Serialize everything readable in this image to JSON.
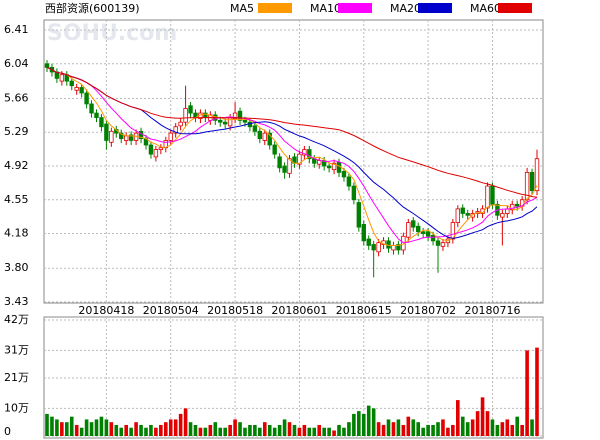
{
  "chart_data": {
    "type": "candlestick",
    "title": "西部资源(600139)",
    "watermark": "SOHU.com",
    "up_color": "#e00000",
    "down_color": "#008000",
    "grid": true,
    "ma": [
      {
        "name": "MA5",
        "color": "#ff9900"
      },
      {
        "name": "MA10",
        "color": "#ff00ff"
      },
      {
        "name": "MA20",
        "color": "#0000cc"
      },
      {
        "name": "MA60",
        "color": "#e00000"
      }
    ],
    "categories": [
      null,
      null,
      null,
      null,
      null,
      null,
      null,
      null,
      null,
      null,
      null,
      null,
      "20180418",
      null,
      null,
      null,
      null,
      null,
      null,
      null,
      null,
      null,
      null,
      null,
      null,
      "20180504",
      null,
      null,
      null,
      null,
      null,
      null,
      null,
      null,
      null,
      null,
      null,
      null,
      "20180518",
      null,
      null,
      null,
      null,
      null,
      null,
      null,
      null,
      null,
      null,
      null,
      null,
      "20180601",
      null,
      null,
      null,
      null,
      null,
      null,
      null,
      null,
      null,
      null,
      null,
      null,
      "20180615",
      null,
      null,
      null,
      null,
      null,
      null,
      null,
      null,
      null,
      null,
      null,
      null,
      "20180702",
      null,
      null,
      null,
      null,
      null,
      null,
      null,
      null,
      null,
      null,
      null,
      null,
      "20180716",
      null,
      null,
      null,
      null,
      null,
      null,
      null,
      null,
      null
    ],
    "open": [
      6.04,
      6.0,
      5.95,
      5.85,
      5.92,
      5.85,
      5.75,
      5.78,
      5.72,
      5.6,
      5.5,
      5.45,
      5.38,
      5.18,
      5.32,
      5.28,
      5.2,
      5.26,
      5.2,
      5.3,
      5.22,
      5.15,
      5.02,
      5.1,
      5.12,
      5.2,
      5.28,
      5.36,
      5.4,
      5.58,
      5.5,
      5.44,
      5.5,
      5.42,
      5.48,
      5.42,
      5.4,
      5.36,
      5.44,
      5.52,
      5.42,
      5.4,
      5.36,
      5.3,
      5.2,
      5.28,
      5.15,
      5.02,
      4.92,
      4.84,
      5.02,
      4.94,
      5.04,
      5.1,
      5.0,
      4.94,
      4.98,
      4.92,
      4.88,
      4.96,
      4.86,
      4.8,
      4.7,
      4.52,
      4.28,
      4.12,
      4.06,
      3.98,
      4.06,
      4.1,
      4.0,
      4.06,
      4.0,
      4.14,
      4.32,
      4.26,
      4.2,
      4.2,
      4.16,
      4.1,
      4.04,
      4.08,
      4.12,
      4.3,
      4.46,
      4.4,
      4.36,
      4.4,
      4.4,
      4.46,
      4.7,
      4.5,
      4.36,
      4.4,
      4.44,
      4.5,
      4.48,
      4.55,
      4.85,
      4.65
    ],
    "high": [
      6.08,
      6.04,
      5.99,
      5.96,
      5.96,
      5.89,
      5.82,
      5.82,
      5.76,
      5.64,
      5.54,
      5.49,
      5.42,
      5.34,
      5.36,
      5.32,
      5.29,
      5.3,
      5.32,
      5.34,
      5.26,
      5.19,
      5.14,
      5.16,
      5.24,
      5.32,
      5.39,
      5.44,
      5.8,
      5.62,
      5.54,
      5.54,
      5.54,
      5.52,
      5.52,
      5.46,
      5.44,
      5.49,
      5.62,
      5.56,
      5.46,
      5.44,
      5.4,
      5.34,
      5.32,
      5.32,
      5.19,
      5.06,
      4.96,
      5.04,
      5.06,
      5.09,
      5.14,
      5.14,
      5.04,
      5.02,
      5.02,
      4.96,
      4.99,
      5.0,
      4.9,
      4.84,
      4.74,
      4.56,
      4.32,
      4.16,
      4.1,
      4.12,
      4.14,
      4.14,
      4.09,
      4.1,
      4.19,
      4.34,
      4.36,
      4.3,
      4.24,
      4.24,
      4.2,
      4.14,
      4.12,
      4.16,
      4.34,
      4.49,
      4.5,
      4.44,
      4.44,
      4.46,
      4.49,
      4.74,
      4.74,
      4.54,
      4.44,
      4.49,
      4.54,
      4.54,
      4.59,
      4.9,
      4.89,
      5.1
    ],
    "low": [
      5.95,
      5.9,
      5.83,
      5.8,
      5.8,
      5.75,
      5.7,
      5.67,
      5.55,
      5.45,
      5.4,
      5.3,
      5.1,
      5.13,
      5.23,
      5.17,
      5.15,
      5.15,
      5.15,
      5.17,
      5.1,
      5.0,
      4.97,
      5.05,
      5.07,
      5.15,
      5.23,
      5.31,
      5.35,
      5.45,
      5.4,
      5.39,
      5.4,
      5.37,
      5.37,
      5.35,
      5.33,
      5.31,
      5.39,
      5.37,
      5.35,
      5.3,
      5.25,
      5.17,
      5.15,
      5.1,
      5.0,
      4.85,
      4.78,
      4.79,
      4.9,
      4.89,
      4.99,
      4.95,
      4.9,
      4.89,
      4.87,
      4.85,
      4.83,
      4.8,
      4.75,
      4.65,
      4.5,
      4.2,
      4.05,
      4.0,
      3.7,
      3.93,
      4.01,
      3.97,
      3.95,
      3.95,
      3.95,
      4.09,
      4.2,
      4.15,
      4.13,
      4.1,
      4.05,
      3.75,
      3.99,
      4.03,
      4.07,
      4.25,
      4.35,
      4.33,
      4.31,
      4.35,
      4.35,
      4.41,
      4.45,
      4.33,
      4.05,
      4.35,
      4.39,
      4.43,
      4.43,
      4.5,
      4.6,
      4.6
    ],
    "close": [
      6.0,
      5.95,
      5.88,
      5.92,
      5.85,
      5.8,
      5.78,
      5.72,
      5.6,
      5.5,
      5.45,
      5.35,
      5.2,
      5.3,
      5.28,
      5.22,
      5.25,
      5.2,
      5.28,
      5.22,
      5.15,
      5.05,
      5.1,
      5.12,
      5.2,
      5.28,
      5.35,
      5.4,
      5.55,
      5.5,
      5.45,
      5.5,
      5.45,
      5.48,
      5.42,
      5.4,
      5.38,
      5.45,
      5.5,
      5.42,
      5.4,
      5.35,
      5.3,
      5.22,
      5.28,
      5.15,
      5.05,
      4.9,
      4.85,
      5.0,
      4.95,
      5.05,
      5.1,
      5.0,
      4.95,
      4.98,
      4.92,
      4.9,
      4.95,
      4.85,
      4.8,
      4.7,
      4.55,
      4.25,
      4.1,
      4.05,
      4.0,
      4.08,
      4.1,
      4.02,
      4.05,
      4.0,
      4.15,
      4.3,
      4.25,
      4.2,
      4.18,
      4.15,
      4.1,
      4.05,
      4.08,
      4.12,
      4.3,
      4.45,
      4.4,
      4.38,
      4.4,
      4.42,
      4.45,
      4.7,
      4.5,
      4.38,
      4.4,
      4.45,
      4.5,
      4.48,
      4.55,
      4.85,
      4.65,
      5.0
    ],
    "volume": [
      8,
      7,
      6,
      5,
      5,
      7,
      4,
      3,
      6,
      5,
      6,
      7,
      6,
      5,
      4,
      3,
      4,
      3,
      5,
      4,
      3,
      4,
      3,
      4,
      5,
      6,
      6,
      8,
      10,
      5,
      4,
      3,
      3,
      4,
      5,
      3,
      3,
      4,
      6,
      5,
      3,
      4,
      4,
      3,
      5,
      4,
      3,
      4,
      6,
      5,
      4,
      3,
      4,
      3,
      3,
      4,
      3,
      3,
      2,
      4,
      3,
      5,
      8,
      9,
      8,
      11,
      10,
      5,
      4,
      6,
      5,
      6,
      4,
      7,
      6,
      5,
      3,
      4,
      4,
      5,
      6,
      3,
      4,
      13,
      7,
      5,
      6,
      9,
      14,
      9,
      6,
      4,
      5,
      6,
      4,
      7,
      4,
      31,
      6,
      32
    ],
    "ylim": [
      3.43,
      6.41
    ],
    "yticks": [
      3.43,
      {
        "value": 3.8,
        "label": "3.80"
      },
      4.18,
      4.55,
      4.92,
      5.29,
      5.66,
      6.04,
      6.41
    ],
    "vol_ylim": [
      0,
      42
    ],
    "vol_yticks": [
      0,
      {
        "value": 10,
        "label": "10万"
      },
      {
        "value": 21,
        "label": "21万"
      },
      {
        "value": 31,
        "label": "31万"
      },
      {
        "value": 42,
        "label": "42万"
      }
    ]
  }
}
